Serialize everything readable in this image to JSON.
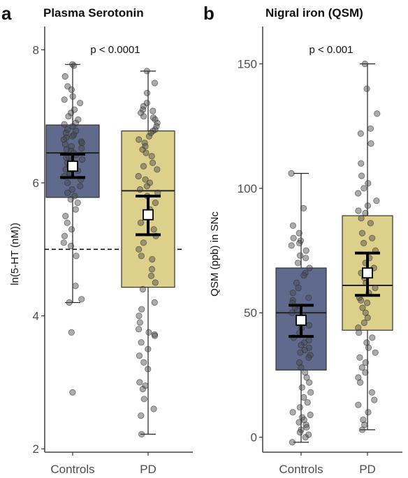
{
  "chart_data": [
    {
      "panel_letter": "a",
      "type": "box",
      "title": "Plasma Serotonin",
      "xlabel": "",
      "ylabel": "ln(5-HT (nM))",
      "categories": [
        "Controls",
        "PD"
      ],
      "ylim": [
        1.95,
        8.35
      ],
      "yticks": [
        "2",
        "4",
        "6",
        "8"
      ],
      "reference_line": {
        "y": 5.0,
        "style": "dashed"
      },
      "annotation": "p < 0.0001",
      "colors": {
        "Controls": "#5f6a8d",
        "PD": "#ddd08b"
      },
      "boxes": [
        {
          "name": "Controls",
          "min": 4.2,
          "q1": 5.78,
          "median": 6.45,
          "q3": 6.87,
          "max": 7.78,
          "mean": 6.25,
          "ci": [
            6.08,
            6.43
          ]
        },
        {
          "name": "PD",
          "min": 2.22,
          "q1": 4.43,
          "median": 5.88,
          "q3": 6.78,
          "max": 7.68,
          "mean": 5.52,
          "ci": [
            5.22,
            5.8
          ]
        }
      ],
      "points": [
        [
          7.78,
          7.76,
          7.6,
          7.45,
          7.4,
          7.3,
          7.25,
          7.2,
          7.1,
          7.05,
          7.0,
          6.95,
          6.9,
          6.88,
          6.85,
          6.8,
          6.78,
          6.75,
          6.72,
          6.7,
          6.68,
          6.65,
          6.62,
          6.6,
          6.58,
          6.55,
          6.52,
          6.5,
          6.48,
          6.45,
          6.42,
          6.4,
          6.38,
          6.35,
          6.32,
          6.3,
          6.28,
          6.25,
          6.2,
          6.18,
          6.15,
          6.12,
          6.1,
          6.05,
          6.0,
          5.95,
          5.9,
          5.85,
          5.8,
          5.75,
          5.7,
          5.6,
          5.5,
          5.4,
          5.3,
          5.2,
          5.1,
          5.05,
          4.9,
          4.45,
          4.25,
          4.2,
          3.75,
          2.85
        ],
        [
          7.68,
          7.5,
          7.35,
          7.2,
          7.15,
          7.1,
          7.08,
          7.05,
          7.0,
          6.98,
          6.95,
          6.9,
          6.85,
          6.8,
          6.78,
          6.75,
          6.7,
          6.65,
          6.6,
          6.55,
          6.5,
          6.45,
          6.4,
          6.3,
          6.25,
          6.2,
          6.1,
          6.05,
          6.0,
          5.95,
          5.9,
          5.85,
          5.8,
          5.7,
          5.6,
          5.5,
          5.4,
          5.3,
          5.2,
          5.1,
          5.0,
          4.9,
          4.85,
          4.7,
          4.6,
          4.5,
          4.4,
          4.2,
          4.1,
          4.0,
          3.9,
          3.8,
          3.75,
          3.72,
          3.7,
          3.6,
          3.5,
          3.4,
          3.3,
          3.2,
          3.0,
          2.95,
          2.9,
          2.75,
          2.6,
          2.5,
          2.22
        ]
      ]
    },
    {
      "panel_letter": "b",
      "type": "box",
      "title": "Nigral iron (QSM)",
      "xlabel": "",
      "ylabel": "QSM (ppb) in SNc",
      "categories": [
        "Controls",
        "PD"
      ],
      "ylim": [
        -6,
        165
      ],
      "yticks": [
        "0",
        "50",
        "100",
        "150"
      ],
      "annotation": "p < 0.001",
      "colors": {
        "Controls": "#5f6a8d",
        "PD": "#ddd08b"
      },
      "boxes": [
        {
          "name": "Controls",
          "min": -2,
          "q1": 27,
          "median": 50,
          "q3": 68,
          "max": 106,
          "mean": 47,
          "ci": [
            40.5,
            53
          ]
        },
        {
          "name": "PD",
          "min": 3,
          "q1": 43,
          "median": 61,
          "q3": 89,
          "max": 150,
          "mean": 66,
          "ci": [
            57,
            74
          ]
        }
      ],
      "points": [
        [
          106,
          92,
          85,
          82,
          80,
          79,
          78,
          77,
          75,
          73,
          72,
          70,
          68,
          66,
          65,
          62,
          60,
          58,
          56,
          55,
          54,
          52,
          51,
          50,
          49,
          48,
          47,
          46,
          45,
          44,
          42,
          40,
          39,
          38,
          37,
          36,
          35,
          34,
          33,
          32,
          30,
          28,
          26,
          24,
          22,
          20,
          18,
          16,
          14,
          12,
          10,
          9,
          8,
          7,
          6,
          5,
          4,
          3,
          2,
          1,
          0,
          -2
        ],
        [
          150,
          140,
          130,
          124,
          122,
          118,
          110,
          105,
          102,
          100,
          98,
          95,
          93,
          91,
          90,
          88,
          86,
          82,
          80,
          78,
          75,
          72,
          70,
          68,
          66,
          64,
          62,
          60,
          58,
          56,
          55,
          54,
          52,
          50,
          48,
          46,
          44,
          42,
          40,
          38,
          36,
          34,
          32,
          30,
          28,
          26,
          24,
          22,
          18,
          15,
          13,
          10,
          7,
          5,
          3
        ]
      ]
    }
  ]
}
